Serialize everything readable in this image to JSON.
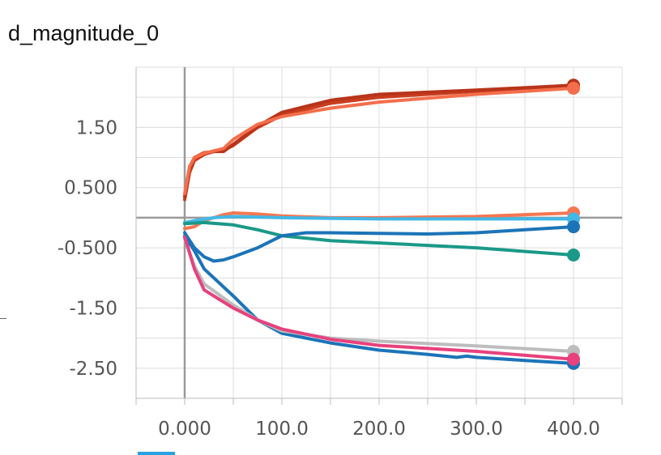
{
  "card": {
    "title": "d_magnitude_0"
  },
  "chart_data": {
    "type": "line",
    "title": "d_magnitude_0",
    "xlabel": "",
    "ylabel": "",
    "xlim": [
      -50,
      450
    ],
    "ylim": [
      -3.0,
      2.5
    ],
    "x_ticks": [
      0,
      100,
      200,
      300,
      400
    ],
    "x_tick_labels": [
      "0.000",
      "100.0",
      "200.0",
      "300.0",
      "400.0"
    ],
    "y_ticks": [
      1.5,
      0.5,
      -0.5,
      -1.5,
      -2.5
    ],
    "y_tick_labels": [
      "1.50",
      "0.500",
      "-0.500",
      "-1.50",
      "-2.50"
    ],
    "grid": true,
    "series": [
      {
        "color": "#c93e1f",
        "points": [
          [
            0,
            0.3
          ],
          [
            5,
            0.75
          ],
          [
            10,
            0.95
          ],
          [
            20,
            1.05
          ],
          [
            30,
            1.1
          ],
          [
            40,
            1.12
          ],
          [
            50,
            1.2
          ],
          [
            75,
            1.5
          ],
          [
            100,
            1.7
          ],
          [
            150,
            1.9
          ],
          [
            200,
            2.0
          ],
          [
            300,
            2.1
          ],
          [
            400,
            2.2
          ]
        ]
      },
      {
        "color": "#b8341b",
        "points": [
          [
            0,
            0.35
          ],
          [
            5,
            0.8
          ],
          [
            10,
            1.0
          ],
          [
            20,
            1.08
          ],
          [
            30,
            1.1
          ],
          [
            40,
            1.1
          ],
          [
            50,
            1.22
          ],
          [
            75,
            1.52
          ],
          [
            100,
            1.75
          ],
          [
            150,
            1.95
          ],
          [
            200,
            2.05
          ],
          [
            300,
            2.12
          ],
          [
            400,
            2.2
          ]
        ]
      },
      {
        "color": "#f46e4b",
        "points": [
          [
            0,
            0.4
          ],
          [
            5,
            0.85
          ],
          [
            10,
            1.0
          ],
          [
            20,
            1.07
          ],
          [
            40,
            1.15
          ],
          [
            50,
            1.3
          ],
          [
            75,
            1.55
          ],
          [
            100,
            1.68
          ],
          [
            150,
            1.82
          ],
          [
            200,
            1.92
          ],
          [
            300,
            2.05
          ],
          [
            400,
            2.15
          ]
        ]
      },
      {
        "color": "#f77650",
        "points": [
          [
            0,
            -0.18
          ],
          [
            10,
            -0.15
          ],
          [
            20,
            -0.05
          ],
          [
            30,
            0.0
          ],
          [
            40,
            0.05
          ],
          [
            50,
            0.08
          ],
          [
            75,
            0.06
          ],
          [
            100,
            0.03
          ],
          [
            150,
            0.0
          ],
          [
            200,
            0.0
          ],
          [
            300,
            0.02
          ],
          [
            400,
            0.08
          ]
        ]
      },
      {
        "color": "#42b8e6",
        "points": [
          [
            0,
            -0.08
          ],
          [
            10,
            -0.05
          ],
          [
            30,
            0.0
          ],
          [
            50,
            0.02
          ],
          [
            100,
            0.0
          ],
          [
            200,
            -0.02
          ],
          [
            300,
            -0.02
          ],
          [
            400,
            -0.02
          ]
        ]
      },
      {
        "color": "#1a9988",
        "points": [
          [
            0,
            -0.1
          ],
          [
            20,
            -0.08
          ],
          [
            50,
            -0.12
          ],
          [
            75,
            -0.2
          ],
          [
            100,
            -0.3
          ],
          [
            150,
            -0.38
          ],
          [
            200,
            -0.42
          ],
          [
            300,
            -0.5
          ],
          [
            400,
            -0.62
          ]
        ]
      },
      {
        "color": "#1c74b8",
        "points": [
          [
            0,
            -0.25
          ],
          [
            10,
            -0.5
          ],
          [
            20,
            -0.65
          ],
          [
            30,
            -0.72
          ],
          [
            40,
            -0.7
          ],
          [
            50,
            -0.65
          ],
          [
            75,
            -0.5
          ],
          [
            100,
            -0.3
          ],
          [
            125,
            -0.25
          ],
          [
            150,
            -0.25
          ],
          [
            200,
            -0.26
          ],
          [
            250,
            -0.27
          ],
          [
            300,
            -0.25
          ],
          [
            350,
            -0.2
          ],
          [
            400,
            -0.15
          ]
        ]
      },
      {
        "color": "#1c74b8",
        "points": [
          [
            0,
            -0.3
          ],
          [
            10,
            -0.55
          ],
          [
            20,
            -0.85
          ],
          [
            50,
            -1.3
          ],
          [
            75,
            -1.7
          ],
          [
            100,
            -1.92
          ],
          [
            150,
            -2.08
          ],
          [
            200,
            -2.2
          ],
          [
            250,
            -2.27
          ],
          [
            280,
            -2.32
          ],
          [
            290,
            -2.3
          ],
          [
            300,
            -2.32
          ],
          [
            350,
            -2.37
          ],
          [
            400,
            -2.42
          ]
        ]
      },
      {
        "color": "#bdbdbd",
        "points": [
          [
            0,
            -0.35
          ],
          [
            10,
            -0.8
          ],
          [
            20,
            -1.1
          ],
          [
            50,
            -1.45
          ],
          [
            75,
            -1.7
          ],
          [
            100,
            -1.88
          ],
          [
            150,
            -2.0
          ],
          [
            200,
            -2.05
          ],
          [
            300,
            -2.13
          ],
          [
            400,
            -2.22
          ]
        ]
      },
      {
        "color": "#e8417d",
        "points": [
          [
            0,
            -0.32
          ],
          [
            10,
            -0.85
          ],
          [
            20,
            -1.2
          ],
          [
            50,
            -1.5
          ],
          [
            75,
            -1.7
          ],
          [
            100,
            -1.85
          ],
          [
            150,
            -2.02
          ],
          [
            200,
            -2.12
          ],
          [
            300,
            -2.22
          ],
          [
            400,
            -2.35
          ]
        ]
      }
    ]
  }
}
